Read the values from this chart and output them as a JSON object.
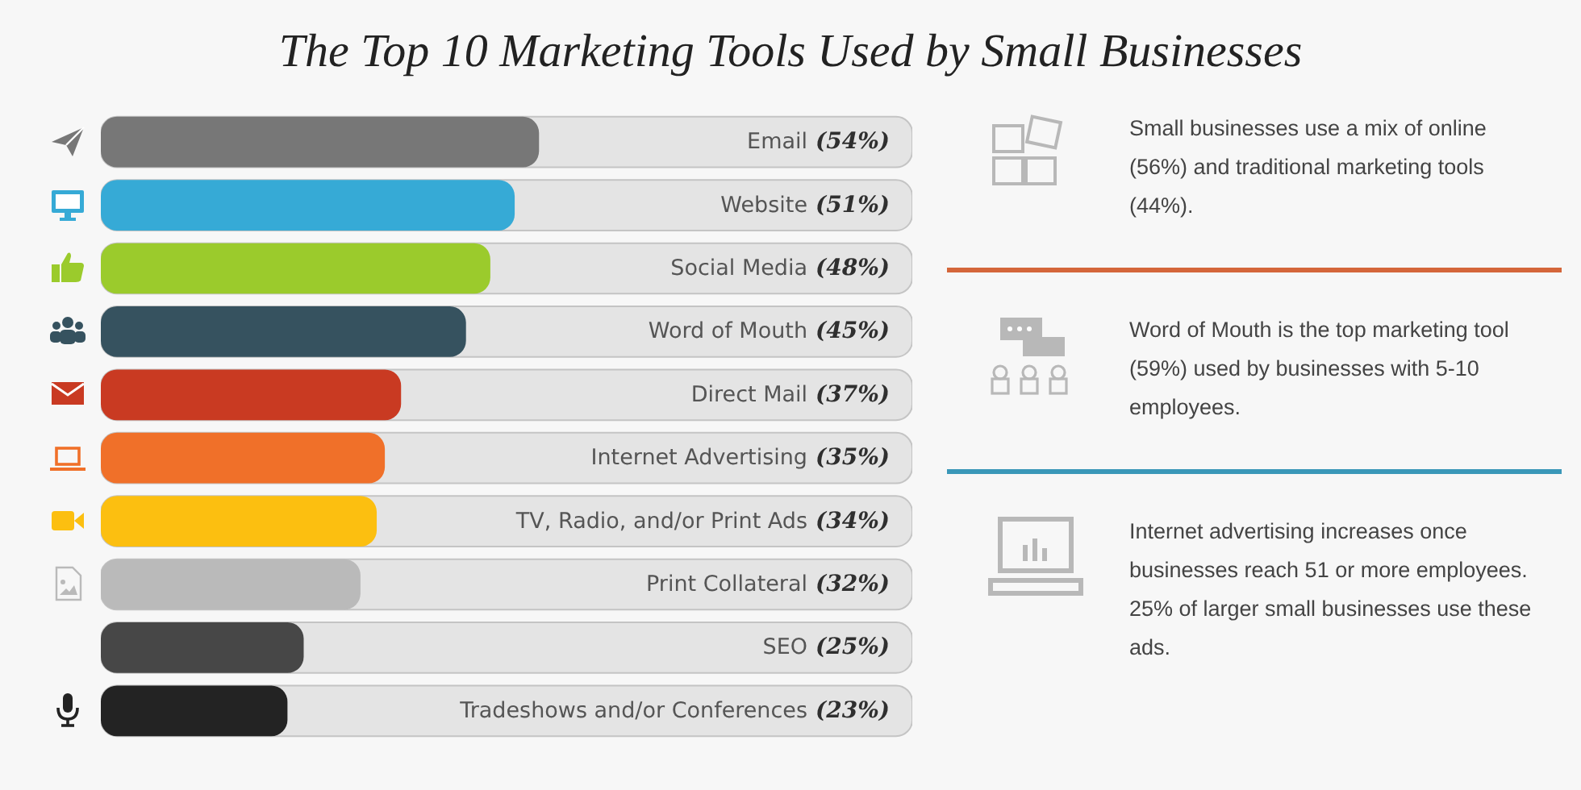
{
  "chart_data": {
    "type": "bar",
    "orientation": "horizontal",
    "title": "The Top 10 Marketing Tools Used by Small Businesses",
    "categories": [
      "Email",
      "Website",
      "Social Media",
      "Word of Mouth",
      "Direct Mail",
      "Internet Advertising",
      "TV, Radio, and/or Print Ads",
      "Print Collateral",
      "SEO",
      "Tradeshows and/or Conferences"
    ],
    "values": [
      54,
      51,
      48,
      45,
      37,
      35,
      34,
      32,
      25,
      23
    ],
    "colors": [
      "#777777",
      "#36aad6",
      "#9bcb2c",
      "#36525f",
      "#c93a22",
      "#f07029",
      "#fcbf10",
      "#bababa",
      "#474747",
      "#232323"
    ],
    "value_labels": [
      "(54%)",
      "(51%)",
      "(48%)",
      "(45%)",
      "(37%)",
      "(35%)",
      "(34%)",
      "(32%)",
      "(25%)",
      "(23%)"
    ],
    "xlim": [
      0,
      100
    ],
    "tick_labels": false,
    "annotations": [
      "Small businesses use a mix of online (56%) and traditional marketing tools (44%).",
      "Word of Mouth is the top marketing tool (59%) used by businesses with 5-10 employees.",
      "Internet advertising increases once businesses reach 51 or more employees. 25% of larger small businesses use these ads."
    ]
  }
}
